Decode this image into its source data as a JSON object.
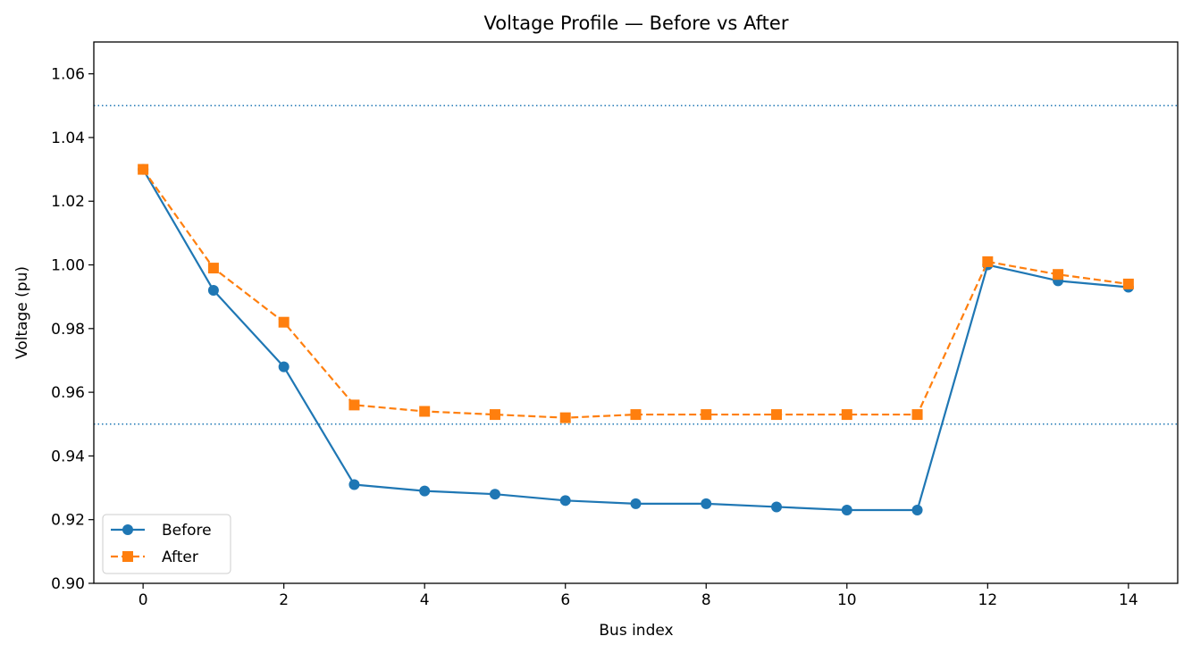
{
  "chart_data": {
    "type": "line",
    "title": "Voltage Profile — Before vs After",
    "xlabel": "Bus index",
    "ylabel": "Voltage (pu)",
    "xlim": [
      -0.7,
      14.7
    ],
    "ylim": [
      0.9,
      1.07
    ],
    "x_ticks": [
      0,
      2,
      4,
      6,
      8,
      10,
      12,
      14
    ],
    "y_ticks": [
      0.9,
      0.92,
      0.94,
      0.96,
      0.98,
      1.0,
      1.02,
      1.04,
      1.06
    ],
    "grid": false,
    "legend_position": "lower-left",
    "reference_lines": [
      {
        "y": 1.05,
        "style": "dotted",
        "color": "#1f77b4"
      },
      {
        "y": 0.95,
        "style": "dotted",
        "color": "#1f77b4"
      }
    ],
    "x": [
      0,
      1,
      2,
      3,
      4,
      5,
      6,
      7,
      8,
      9,
      10,
      11,
      12,
      13,
      14
    ],
    "series": [
      {
        "name": "Before",
        "color": "#1f77b4",
        "line": "solid",
        "marker": "circle",
        "values": [
          1.03,
          0.992,
          0.968,
          0.931,
          0.929,
          0.928,
          0.926,
          0.925,
          0.925,
          0.924,
          0.923,
          0.923,
          1.0,
          0.995,
          0.993
        ]
      },
      {
        "name": "After",
        "color": "#ff7f0e",
        "line": "dashed",
        "marker": "square",
        "values": [
          1.03,
          0.999,
          0.982,
          0.956,
          0.954,
          0.953,
          0.952,
          0.953,
          0.953,
          0.953,
          0.953,
          0.953,
          1.001,
          0.997,
          0.994
        ]
      }
    ]
  }
}
